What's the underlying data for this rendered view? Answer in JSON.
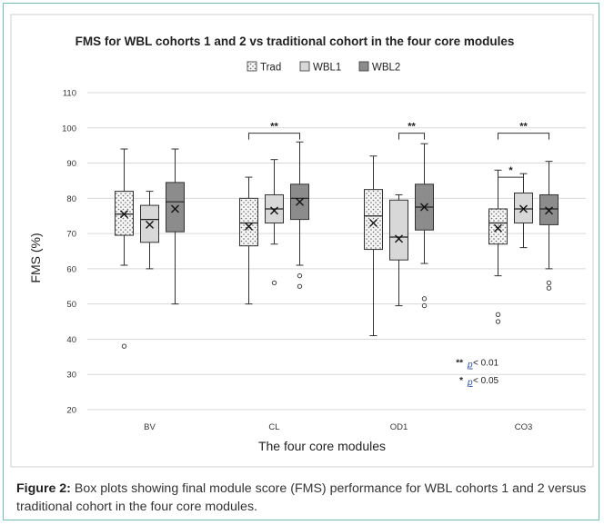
{
  "chart_data": {
    "type": "box",
    "title": "FMS for WBL cohorts 1 and 2 vs traditional cohort in the four core modules",
    "xlabel": "The four core modules",
    "ylabel": "FMS (%)",
    "ylim": [
      20,
      110
    ],
    "yticks": [
      20,
      30,
      40,
      50,
      60,
      70,
      80,
      90,
      100,
      110
    ],
    "ytick_labels": [
      "20",
      "30",
      "40",
      "50",
      "60",
      "70",
      "80",
      "90",
      "100",
      "110"
    ],
    "grid": true,
    "legend_position": "top-center",
    "categories": [
      "BV",
      "CL",
      "OD1",
      "CO3"
    ],
    "series": [
      {
        "name": "Trad",
        "color": "#f4f4f4",
        "pattern": "dots",
        "boxes": [
          {
            "min": 61,
            "q1": 69.5,
            "median": 75.5,
            "q3": 82,
            "max": 94,
            "mean": 75.5,
            "outliers": [
              38
            ]
          },
          {
            "min": 50,
            "q1": 66.5,
            "median": 73,
            "q3": 80,
            "max": 86,
            "mean": 72,
            "outliers": []
          },
          {
            "min": 41,
            "q1": 65.5,
            "median": 75,
            "q3": 82.5,
            "max": 92,
            "mean": 73,
            "outliers": []
          },
          {
            "min": 58,
            "q1": 67,
            "median": 73,
            "q3": 77,
            "max": 88,
            "mean": 71.5,
            "outliers": [
              47,
              45
            ]
          }
        ]
      },
      {
        "name": "WBL1",
        "color": "#d8d8d8",
        "pattern": "none",
        "boxes": [
          {
            "min": 60,
            "q1": 67.5,
            "median": 74,
            "q3": 78,
            "max": 82,
            "mean": 72.5,
            "outliers": []
          },
          {
            "min": 67,
            "q1": 73,
            "median": 77,
            "q3": 81,
            "max": 91,
            "mean": 76.5,
            "outliers": [
              56
            ]
          },
          {
            "min": 49.5,
            "q1": 62.5,
            "median": 69,
            "q3": 79.5,
            "max": 81,
            "mean": 68.5,
            "outliers": []
          },
          {
            "min": 66,
            "q1": 73,
            "median": 77,
            "q3": 81.5,
            "max": 87,
            "mean": 77,
            "outliers": []
          }
        ]
      },
      {
        "name": "WBL2",
        "color": "#8c8c8c",
        "pattern": "none",
        "boxes": [
          {
            "min": 50,
            "q1": 70.5,
            "median": 79,
            "q3": 84.5,
            "max": 94,
            "mean": 77,
            "outliers": []
          },
          {
            "min": 61,
            "q1": 74,
            "median": 80,
            "q3": 84,
            "max": 96,
            "mean": 79,
            "outliers": [
              58,
              55
            ]
          },
          {
            "min": 61.5,
            "q1": 71,
            "median": 77.5,
            "q3": 84,
            "max": 95.5,
            "mean": 77.5,
            "outliers": [
              51.5,
              49.5
            ]
          },
          {
            "min": 60,
            "q1": 72.5,
            "median": 77,
            "q3": 81,
            "max": 90.5,
            "mean": 76.5,
            "outliers": [
              56,
              54.5
            ]
          }
        ]
      }
    ],
    "significance": [
      {
        "category": "CL",
        "from_series": "Trad",
        "to_series": "WBL2",
        "label": "**",
        "y": 98.5
      },
      {
        "category": "OD1",
        "from_series": "WBL1",
        "to_series": "WBL2",
        "label": "**",
        "y": 98.5
      },
      {
        "category": "CO3",
        "from_series": "Trad",
        "to_series": "WBL2",
        "label": "**",
        "y": 98.5
      },
      {
        "category": "CO3",
        "from_series": "Trad",
        "to_series": "WBL1",
        "label": "*",
        "y": 86
      }
    ],
    "significance_key": [
      {
        "stars": "**",
        "p_label": "p",
        "text": " < 0.01"
      },
      {
        "stars": "*",
        "p_label": "p",
        "text": " < 0.05"
      }
    ]
  },
  "caption": {
    "label": "Figure 2:",
    "text": " Box plots showing final module score (FMS) performance for WBL cohorts 1 and 2 versus traditional cohort in the four core modules."
  }
}
